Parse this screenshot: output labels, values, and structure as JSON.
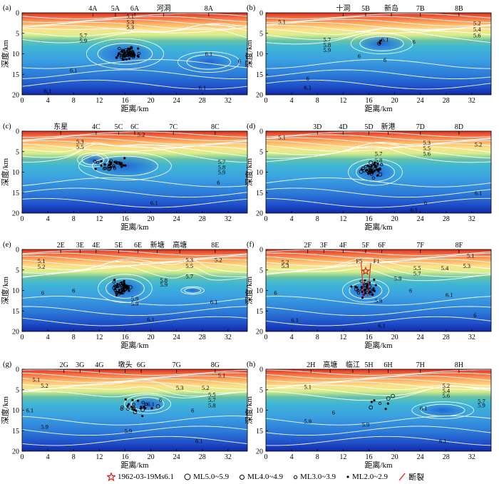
{
  "chart_data": {
    "type": "heatmap",
    "shared": {
      "xlabel": "距离/km",
      "ylabel": "深度/km",
      "xticks": [
        "0",
        "4",
        "8",
        "12",
        "16",
        "20",
        "24",
        "28",
        "32"
      ],
      "yticks": [
        "0",
        "5",
        "10",
        "15",
        "20"
      ],
      "xlim": [
        0,
        35
      ],
      "ylim": [
        20,
        0
      ],
      "colormap": "jet (red=low velocity at surface, blue=high velocity at depth)"
    },
    "panels": [
      {
        "id": "(a)",
        "top_labels": [
          {
            "text": "4A",
            "x": 11
          },
          {
            "text": "5A",
            "x": 14.5
          },
          {
            "text": "6A",
            "x": 17.5
          },
          {
            "text": "河洞",
            "x": 22
          },
          {
            "text": "8A",
            "x": 29
          }
        ],
        "contour_labels": [
          {
            "text": "5.1",
            "x": 16.8,
            "y": 0.8
          },
          {
            "text": "5.3",
            "x": 16.8,
            "y": 2.3
          },
          {
            "text": "5.3",
            "x": 16.8,
            "y": 3.5
          },
          {
            "text": "5.7",
            "x": 9.5,
            "y": 5.5
          },
          {
            "text": "5.9",
            "x": 9.5,
            "y": 6.8
          },
          {
            "text": "6.1",
            "x": 29,
            "y": 10
          },
          {
            "text": "6",
            "x": 33.8,
            "y": 11.7
          },
          {
            "text": "6.1",
            "x": 8,
            "y": 14
          },
          {
            "text": "6.1",
            "x": 28,
            "y": 18.3
          },
          {
            "text": "6.1",
            "x": 4,
            "y": 19
          }
        ],
        "highs": [
          {
            "x": 16,
            "y": 10,
            "rx": 5,
            "ry": 3.2
          },
          {
            "x": 29,
            "y": 12,
            "rx": 4,
            "ry": 2.2
          }
        ],
        "events": {
          "center": [
            16.5,
            10
          ],
          "spread": [
            1.5,
            1.3
          ],
          "count": 60
        }
      },
      {
        "id": "(b)",
        "top_labels": [
          {
            "text": "十洞",
            "x": 12
          },
          {
            "text": "5B",
            "x": 15.5
          },
          {
            "text": "新岛",
            "x": 19.5
          },
          {
            "text": "7B",
            "x": 24
          },
          {
            "text": "8B",
            "x": 30
          }
        ],
        "contour_labels": [
          {
            "text": "5.1",
            "x": 2.5,
            "y": 2.2
          },
          {
            "text": "5.2",
            "x": 32.8,
            "y": 2.5
          },
          {
            "text": "5.4",
            "x": 32.8,
            "y": 4
          },
          {
            "text": "5.6",
            "x": 32.8,
            "y": 5.5
          },
          {
            "text": "5.7",
            "x": 9.5,
            "y": 6.5
          },
          {
            "text": "5.8",
            "x": 9.5,
            "y": 7.8
          },
          {
            "text": "5.9",
            "x": 9.5,
            "y": 9
          },
          {
            "text": "6.1",
            "x": 18.5,
            "y": 6.5
          },
          {
            "text": "6",
            "x": 23,
            "y": 7
          },
          {
            "text": "6",
            "x": 14.5,
            "y": 10.5
          },
          {
            "text": "6",
            "x": 18.5,
            "y": 11.5
          },
          {
            "text": "6",
            "x": 6.5,
            "y": 16
          },
          {
            "text": "6.1",
            "x": 6.5,
            "y": 18.2
          }
        ],
        "highs": [
          {
            "x": 18,
            "y": 7.5,
            "rx": 4,
            "ry": 2.2
          }
        ],
        "events": {
          "center": [
            17.5,
            7
          ],
          "spread": [
            0.6,
            0.5
          ],
          "count": 3
        }
      },
      {
        "id": "(c)",
        "top_labels": [
          {
            "text": "东星",
            "x": 6
          },
          {
            "text": "4C",
            "x": 11.5
          },
          {
            "text": "5C",
            "x": 15
          },
          {
            "text": "6C",
            "x": 17.5
          },
          {
            "text": "7C",
            "x": 23.5
          },
          {
            "text": "8C",
            "x": 30
          }
        ],
        "contour_labels": [
          {
            "text": "5.2",
            "x": 18.5,
            "y": 0.8
          },
          {
            "text": "5.3",
            "x": 9,
            "y": 2.5
          },
          {
            "text": "5.5",
            "x": 9,
            "y": 3.8
          },
          {
            "text": "5.7",
            "x": 31,
            "y": 7.5
          },
          {
            "text": "5.8",
            "x": 31,
            "y": 8.8
          },
          {
            "text": "5.9",
            "x": 31,
            "y": 10
          },
          {
            "text": "6",
            "x": 30.5,
            "y": 12.5
          },
          {
            "text": "6.1",
            "x": 20.5,
            "y": 17.5
          }
        ],
        "highs": [
          {
            "x": 16,
            "y": 8.5,
            "rx": 6,
            "ry": 3
          },
          {
            "x": 11,
            "y": 7,
            "rx": 2,
            "ry": 1.5
          }
        ],
        "events": {
          "center": [
            14,
            8
          ],
          "spread": [
            2.5,
            1.2
          ],
          "count": 35
        }
      },
      {
        "id": "(d)",
        "top_labels": [
          {
            "text": "3D",
            "x": 8
          },
          {
            "text": "4D",
            "x": 12
          },
          {
            "text": "5D",
            "x": 16
          },
          {
            "text": "新港",
            "x": 19
          },
          {
            "text": "7D",
            "x": 24
          },
          {
            "text": "8D",
            "x": 30
          }
        ],
        "contour_labels": [
          {
            "text": "5.1",
            "x": 2.5,
            "y": 1.5
          },
          {
            "text": "5.3",
            "x": 25,
            "y": 2.8
          },
          {
            "text": "5.5",
            "x": 25,
            "y": 4.2
          },
          {
            "text": "5.6",
            "x": 25,
            "y": 5.5
          },
          {
            "text": "5.2",
            "x": 33,
            "y": 3.2
          },
          {
            "text": "5.7",
            "x": 17.5,
            "y": 5.5
          },
          {
            "text": "5.8",
            "x": 17.5,
            "y": 7
          },
          {
            "text": "6.1",
            "x": 33,
            "y": 15
          },
          {
            "text": "6",
            "x": 24.8,
            "y": 17.5
          },
          {
            "text": "6.1",
            "x": 23,
            "y": 19.2
          }
        ],
        "highs": [
          {
            "x": 17,
            "y": 10,
            "rx": 3.5,
            "ry": 2.8
          }
        ],
        "events": {
          "center": [
            16.5,
            9.5
          ],
          "spread": [
            1.2,
            1.5
          ],
          "count": 45
        }
      },
      {
        "id": "(e)",
        "top_labels": [
          {
            "text": "2E",
            "x": 6
          },
          {
            "text": "3E",
            "x": 9
          },
          {
            "text": "4E",
            "x": 11.5
          },
          {
            "text": "5E",
            "x": 15
          },
          {
            "text": "6E",
            "x": 18
          },
          {
            "text": "新塘",
            "x": 21
          },
          {
            "text": "高塘",
            "x": 24.5
          },
          {
            "text": "8E",
            "x": 30
          }
        ],
        "contour_labels": [
          {
            "text": "5.1",
            "x": 3,
            "y": 2.8
          },
          {
            "text": "5.2",
            "x": 3,
            "y": 4.2
          },
          {
            "text": "5.3",
            "x": 26,
            "y": 2.5
          },
          {
            "text": "5.5",
            "x": 26,
            "y": 4
          },
          {
            "text": "5.2",
            "x": 30.5,
            "y": 2.5
          },
          {
            "text": "5.7",
            "x": 26,
            "y": 6.5
          },
          {
            "text": "5.8",
            "x": 22,
            "y": 7.5
          },
          {
            "text": "5.9",
            "x": 22,
            "y": 8.5
          },
          {
            "text": "6",
            "x": 3.2,
            "y": 10.5
          },
          {
            "text": "6",
            "x": 8,
            "y": 10
          },
          {
            "text": "5.9",
            "x": 17.5,
            "y": 13.2
          },
          {
            "text": "5.9",
            "x": 17.5,
            "y": 12
          },
          {
            "text": "6.1",
            "x": 29.8,
            "y": 12.8
          },
          {
            "text": "6.1",
            "x": 20,
            "y": 17
          }
        ],
        "highs": [
          {
            "x": 16,
            "y": 9.5,
            "rx": 3.5,
            "ry": 3
          },
          {
            "x": 26.5,
            "y": 10,
            "rx": 1.5,
            "ry": 0.8
          }
        ],
        "events": {
          "center": [
            15.5,
            9.5
          ],
          "spread": [
            1.3,
            1.6
          ],
          "count": 55
        }
      },
      {
        "id": "(f)",
        "top_labels": [
          {
            "text": "2F",
            "x": 6.5
          },
          {
            "text": "3F",
            "x": 9
          },
          {
            "text": "4F",
            "x": 12
          },
          {
            "text": "5F",
            "x": 15.5
          },
          {
            "text": "6F",
            "x": 18
          },
          {
            "text": "7F",
            "x": 24
          },
          {
            "text": "8F",
            "x": 30
          }
        ],
        "contour_labels": [
          {
            "text": "F5",
            "x": 14.5,
            "y": 2.8
          },
          {
            "text": "F1",
            "x": 17.2,
            "y": 2.8
          },
          {
            "text": "5.2",
            "x": 3,
            "y": 3
          },
          {
            "text": "5.3",
            "x": 3,
            "y": 4
          },
          {
            "text": "5.1",
            "x": 31.8,
            "y": 1.5
          },
          {
            "text": "5.3",
            "x": 31.2,
            "y": 4
          },
          {
            "text": "5.4",
            "x": 27.8,
            "y": 4.5
          },
          {
            "text": "5.5",
            "x": 23.5,
            "y": 4.5
          },
          {
            "text": "5.7",
            "x": 23.5,
            "y": 5.8
          },
          {
            "text": "5.9",
            "x": 20.5,
            "y": 7
          },
          {
            "text": "6",
            "x": 1.5,
            "y": 10.5
          },
          {
            "text": "6",
            "x": 22.5,
            "y": 10
          },
          {
            "text": "6.1",
            "x": 28.5,
            "y": 11
          },
          {
            "text": "5.9",
            "x": 17.5,
            "y": 12.5
          },
          {
            "text": "6",
            "x": 32.5,
            "y": 16
          },
          {
            "text": "6.1",
            "x": 4.5,
            "y": 17.2
          },
          {
            "text": "6.1",
            "x": 18,
            "y": 18.5
          }
        ],
        "highs": [
          {
            "x": 15.5,
            "y": 10,
            "rx": 3,
            "ry": 2.5
          }
        ],
        "events": {
          "center": [
            15.5,
            9.5
          ],
          "spread": [
            1.6,
            1.8
          ],
          "count": 40
        },
        "star": {
          "x": 15.5,
          "y": 5.3
        },
        "faults": [
          [
            [
              14.8,
              3.3
            ],
            [
              15.2,
              11.5
            ]
          ],
          [
            [
              16.3,
              3.3
            ],
            [
              15.8,
              11.5
            ]
          ]
        ]
      },
      {
        "id": "(g)",
        "top_labels": [
          {
            "text": "2G",
            "x": 6.5
          },
          {
            "text": "3G",
            "x": 9
          },
          {
            "text": "4G",
            "x": 12
          },
          {
            "text": "墩头",
            "x": 16
          },
          {
            "text": "6G",
            "x": 18.5
          },
          {
            "text": "7G",
            "x": 24
          },
          {
            "text": "8G",
            "x": 30
          }
        ],
        "contour_labels": [
          {
            "text": "5.1",
            "x": 2.2,
            "y": 2.5
          },
          {
            "text": "5.2",
            "x": 3.5,
            "y": 4
          },
          {
            "text": "5.1",
            "x": 31,
            "y": 1.5
          },
          {
            "text": "5.3",
            "x": 24.5,
            "y": 4.5
          },
          {
            "text": "5.2",
            "x": 28.5,
            "y": 4.5
          },
          {
            "text": "5.5",
            "x": 29.5,
            "y": 6.2
          },
          {
            "text": "5.7",
            "x": 29.5,
            "y": 7.5
          },
          {
            "text": "5.8",
            "x": 29.5,
            "y": 8.8
          },
          {
            "text": "6",
            "x": 21.5,
            "y": 7.5
          },
          {
            "text": "6.1",
            "x": 20,
            "y": 8.5
          },
          {
            "text": "6.1",
            "x": 1.2,
            "y": 10
          },
          {
            "text": "6",
            "x": 26.5,
            "y": 10
          },
          {
            "text": "5.9",
            "x": 3.5,
            "y": 14
          },
          {
            "text": "5.9",
            "x": 16.5,
            "y": 15
          },
          {
            "text": "6.1",
            "x": 27.5,
            "y": 17.5
          }
        ],
        "highs": [
          {
            "x": 19.5,
            "y": 8.5,
            "rx": 3,
            "ry": 2
          }
        ],
        "events": {
          "center": [
            18,
            9
          ],
          "spread": [
            2.5,
            1.8
          ],
          "count": 25
        }
      },
      {
        "id": "(h)",
        "top_labels": [
          {
            "text": "2H",
            "x": 7
          },
          {
            "text": "高塘",
            "x": 10
          },
          {
            "text": "临江",
            "x": 13.5
          },
          {
            "text": "5H",
            "x": 16
          },
          {
            "text": "6H",
            "x": 19
          },
          {
            "text": "7H",
            "x": 24
          },
          {
            "text": "8H",
            "x": 30
          }
        ],
        "contour_labels": [
          {
            "text": "5.1",
            "x": 6.5,
            "y": 4.3
          },
          {
            "text": "5.2",
            "x": 28,
            "y": 4
          },
          {
            "text": "5.4",
            "x": 28,
            "y": 5.2
          },
          {
            "text": "5.6",
            "x": 28,
            "y": 6.4
          },
          {
            "text": "5.7",
            "x": 33.5,
            "y": 7.7
          },
          {
            "text": "5.9",
            "x": 33.5,
            "y": 8.8
          },
          {
            "text": "6.1",
            "x": 24.5,
            "y": 9.5
          },
          {
            "text": "6",
            "x": 10.5,
            "y": 10.5
          },
          {
            "text": "5.9",
            "x": 6.5,
            "y": 12.7
          },
          {
            "text": "5.9",
            "x": 15.5,
            "y": 13.5
          },
          {
            "text": "6.1",
            "x": 27.5,
            "y": 17.5
          }
        ],
        "highs": [
          {
            "x": 27.5,
            "y": 10,
            "rx": 4,
            "ry": 1.8
          }
        ],
        "events": {
          "center": [
            17,
            9
          ],
          "spread": [
            3,
            2.5
          ],
          "count": 8
        }
      }
    ],
    "legend": [
      {
        "symbol": "red-star",
        "label": "1962-03-19Ms6.1"
      },
      {
        "symbol": "circle-large",
        "label": "ML5.0~5.9"
      },
      {
        "symbol": "circle-medium",
        "label": "ML4.0~4.9"
      },
      {
        "symbol": "circle-small",
        "label": "ML3.0~3.9"
      },
      {
        "symbol": "dot",
        "label": "ML2.0~2.9"
      },
      {
        "symbol": "red-line",
        "label": "断裂"
      }
    ]
  }
}
